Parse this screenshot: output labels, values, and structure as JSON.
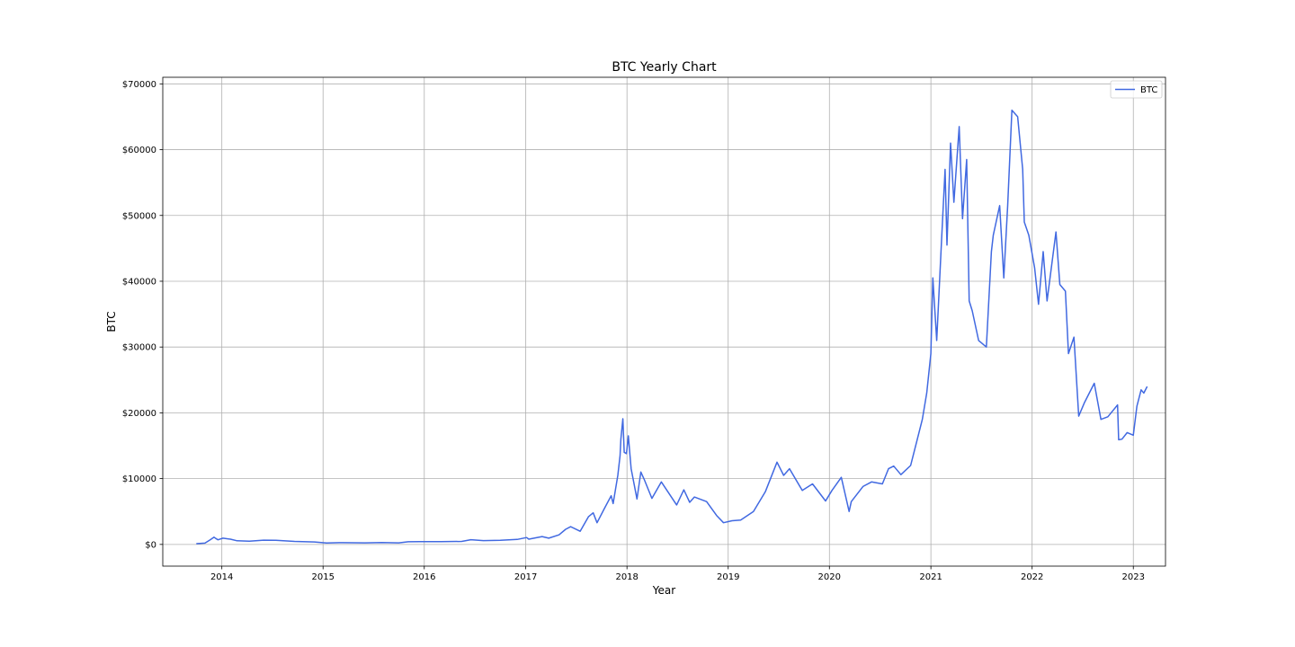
{
  "chart_data": {
    "type": "line",
    "title": "BTC Yearly Chart",
    "xlabel": "Year",
    "ylabel": "BTC",
    "x_tick_labels": [
      "2014",
      "2015",
      "2016",
      "2017",
      "2018",
      "2019",
      "2020",
      "2021",
      "2022",
      "2023"
    ],
    "y_tick_labels": [
      "$0",
      "$10000",
      "$20000",
      "$30000",
      "$40000",
      "$50000",
      "$60000",
      "$70000"
    ],
    "x_range": [
      "2013-06-02",
      "2023-04-27"
    ],
    "ylim": [
      -3300,
      71000
    ],
    "grid": true,
    "legend_position": "top-right",
    "series": [
      {
        "name": "BTC",
        "color": "#4169e1",
        "x": [
          "2013-10-01",
          "2013-11-01",
          "2013-11-20",
          "2013-12-04",
          "2013-12-10",
          "2013-12-18",
          "2014-01-05",
          "2014-02-01",
          "2014-02-25",
          "2014-04-10",
          "2014-06-01",
          "2014-07-15",
          "2014-09-20",
          "2014-12-01",
          "2015-01-14",
          "2015-03-01",
          "2015-06-01",
          "2015-08-01",
          "2015-10-01",
          "2015-11-04",
          "2015-12-15",
          "2016-03-01",
          "2016-05-15",
          "2016-06-17",
          "2016-08-01",
          "2016-10-01",
          "2016-12-01",
          "2017-01-04",
          "2017-01-12",
          "2017-03-01",
          "2017-03-25",
          "2017-05-01",
          "2017-05-25",
          "2017-06-12",
          "2017-07-16",
          "2017-08-15",
          "2017-09-01",
          "2017-09-15",
          "2017-10-12",
          "2017-11-05",
          "2017-11-12",
          "2017-11-29",
          "2017-12-07",
          "2017-12-10",
          "2017-12-17",
          "2017-12-22",
          "2017-12-30",
          "2018-01-06",
          "2018-01-16",
          "2018-02-06",
          "2018-02-20",
          "2018-03-05",
          "2018-04-01",
          "2018-05-05",
          "2018-06-29",
          "2018-07-25",
          "2018-08-15",
          "2018-09-01",
          "2018-10-15",
          "2018-11-20",
          "2018-12-15",
          "2019-01-15",
          "2019-02-15",
          "2019-04-02",
          "2019-05-15",
          "2019-06-26",
          "2019-07-20",
          "2019-08-10",
          "2019-09-25",
          "2019-11-01",
          "2019-12-18",
          "2020-01-10",
          "2020-02-13",
          "2020-03-12",
          "2020-03-20",
          "2020-05-01",
          "2020-06-01",
          "2020-07-10",
          "2020-08-01",
          "2020-08-20",
          "2020-09-15",
          "2020-10-20",
          "2020-11-10",
          "2020-12-01",
          "2020-12-17",
          "2021-01-01",
          "2021-01-08",
          "2021-01-22",
          "2021-02-08",
          "2021-02-21",
          "2021-02-28",
          "2021-03-13",
          "2021-03-25",
          "2021-04-13",
          "2021-04-25",
          "2021-05-10",
          "2021-05-19",
          "2021-05-30",
          "2021-06-22",
          "2021-07-20",
          "2021-08-07",
          "2021-08-14",
          "2021-09-06",
          "2021-09-21",
          "2021-10-05",
          "2021-10-20",
          "2021-11-10",
          "2021-11-28",
          "2021-12-04",
          "2021-12-20",
          "2022-01-10",
          "2022-01-24",
          "2022-02-10",
          "2022-02-24",
          "2022-03-28",
          "2022-04-11",
          "2022-05-01",
          "2022-05-12",
          "2022-06-01",
          "2022-06-18",
          "2022-07-08",
          "2022-08-13",
          "2022-09-06",
          "2022-10-01",
          "2022-11-05",
          "2022-11-09",
          "2022-11-21",
          "2022-12-10",
          "2023-01-01",
          "2023-01-14",
          "2023-01-29",
          "2023-02-08",
          "2023-02-20"
        ],
        "y": [
          120,
          200,
          700,
          1100,
          900,
          700,
          950,
          800,
          550,
          480,
          650,
          620,
          450,
          380,
          220,
          270,
          240,
          280,
          240,
          400,
          430,
          420,
          460,
          720,
          580,
          620,
          750,
          1050,
          800,
          1200,
          950,
          1450,
          2300,
          2700,
          2000,
          4200,
          4800,
          3300,
          5500,
          7400,
          6200,
          10500,
          13500,
          16000,
          19100,
          14000,
          13800,
          16500,
          11500,
          6900,
          11000,
          9800,
          7000,
          9500,
          6000,
          8300,
          6400,
          7200,
          6500,
          4400,
          3300,
          3600,
          3700,
          5000,
          8000,
          12500,
          10500,
          11500,
          8200,
          9200,
          6600,
          8200,
          10200,
          5000,
          6500,
          8800,
          9500,
          9200,
          11500,
          11900,
          10600,
          12000,
          15500,
          19000,
          23000,
          29000,
          40500,
          31000,
          46000,
          57000,
          45500,
          61000,
          52000,
          63500,
          49500,
          58500,
          37000,
          35500,
          31000,
          30000,
          44500,
          47000,
          51500,
          40500,
          51500,
          66000,
          65000,
          57000,
          49000,
          47000,
          42000,
          36500,
          44500,
          37000,
          47500,
          39500,
          38500,
          29000,
          31500,
          19500,
          21500,
          24500,
          19000,
          19400,
          21200,
          15900,
          16000,
          17000,
          16600,
          21000,
          23500,
          23000,
          24000
        ]
      }
    ]
  }
}
